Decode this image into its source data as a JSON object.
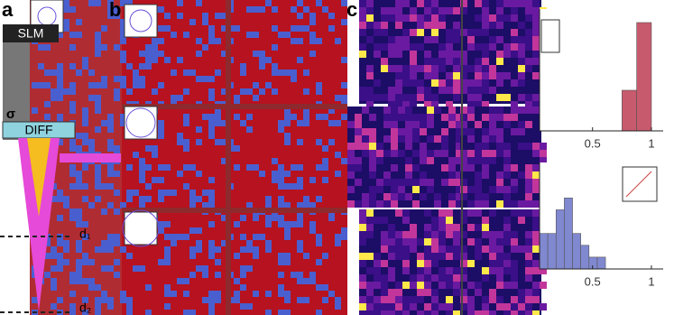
{
  "panels": {
    "a": "a",
    "b": "b",
    "c": "c"
  },
  "panel_a": {
    "slm": "SLM",
    "diff": "DIFF",
    "sigma": "σ",
    "d1": "d₁",
    "d2": "d₂"
  },
  "chart_data": [
    {
      "type": "histogram",
      "bins": [
        0.75,
        0.875,
        1.0
      ],
      "values": [
        3,
        8
      ],
      "color": "#c85a6e",
      "xlim": [
        0.05,
        1.1
      ],
      "xticks": [
        0.5,
        1
      ],
      "ylim": [
        0,
        9
      ]
    },
    {
      "type": "histogram",
      "bins": [
        0.05,
        0.12,
        0.19,
        0.26,
        0.33,
        0.4,
        0.47,
        0.54,
        0.61
      ],
      "values": [
        3,
        3,
        5,
        6,
        3,
        2,
        1,
        1
      ],
      "color": "#8088d0",
      "xlim": [
        0.05,
        1.1
      ],
      "xticks": [
        0.5,
        1
      ],
      "ylim": [
        0,
        9
      ]
    }
  ]
}
